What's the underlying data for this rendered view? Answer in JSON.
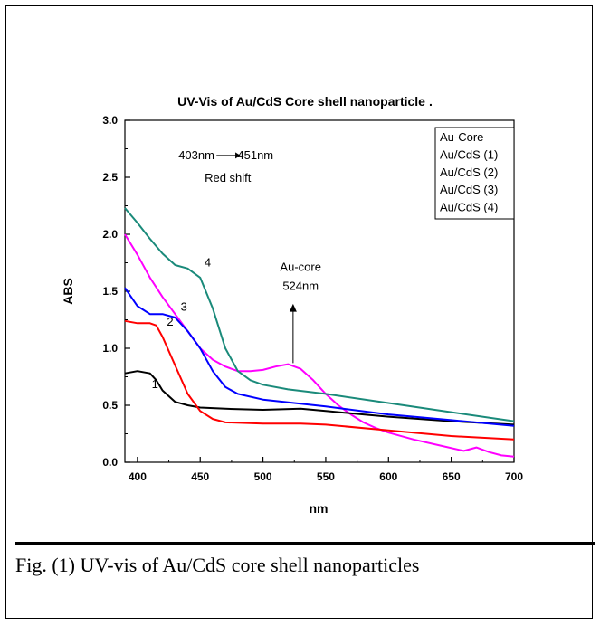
{
  "caption": "Fig.    (1)    UV-vis    of    Au/CdS    core    shell nanoparticles",
  "chart_data": {
    "type": "line",
    "title": "UV-Vis of Au/CdS Core shell nanoparticle",
    "title_suffix": ".",
    "xlabel": "nm",
    "ylabel": "ABS",
    "xlim": [
      390,
      700
    ],
    "ylim": [
      0,
      3.0
    ],
    "xticks": [
      "400",
      "450",
      "500",
      "550",
      "600",
      "650",
      "700"
    ],
    "yticks": [
      "0.0",
      "0.5",
      "1.0",
      "1.5",
      "2.0",
      "2.5",
      "3.0"
    ],
    "grid": false,
    "legend_position": "top-right",
    "series": [
      {
        "name": "Au-Core",
        "color": "#ff00ff",
        "x": [
          390,
          400,
          410,
          420,
          430,
          440,
          450,
          460,
          470,
          480,
          490,
          500,
          510,
          520,
          530,
          540,
          550,
          560,
          570,
          580,
          590,
          600,
          620,
          640,
          660,
          670,
          680,
          690,
          700
        ],
        "y": [
          2.0,
          1.82,
          1.62,
          1.45,
          1.3,
          1.15,
          1.0,
          0.9,
          0.84,
          0.8,
          0.8,
          0.81,
          0.84,
          0.86,
          0.82,
          0.72,
          0.6,
          0.5,
          0.42,
          0.35,
          0.3,
          0.26,
          0.2,
          0.15,
          0.1,
          0.13,
          0.09,
          0.06,
          0.05
        ]
      },
      {
        "name": "Au/CdS (1)",
        "color": "#000000",
        "x": [
          390,
          400,
          410,
          415,
          420,
          430,
          440,
          450,
          470,
          500,
          530,
          550,
          580,
          600,
          650,
          700
        ],
        "y": [
          0.78,
          0.8,
          0.78,
          0.72,
          0.63,
          0.53,
          0.5,
          0.48,
          0.47,
          0.46,
          0.47,
          0.45,
          0.42,
          0.4,
          0.36,
          0.33
        ]
      },
      {
        "name": "Au/CdS (2)",
        "color": "#ff0000",
        "x": [
          390,
          400,
          410,
          415,
          420,
          430,
          440,
          450,
          460,
          470,
          500,
          530,
          550,
          600,
          650,
          700
        ],
        "y": [
          1.24,
          1.22,
          1.22,
          1.2,
          1.1,
          0.85,
          0.6,
          0.45,
          0.38,
          0.35,
          0.34,
          0.34,
          0.33,
          0.28,
          0.23,
          0.2
        ]
      },
      {
        "name": "Au/CdS (3)",
        "color": "#0000ff",
        "x": [
          390,
          400,
          410,
          420,
          430,
          440,
          450,
          460,
          470,
          480,
          500,
          550,
          600,
          650,
          700
        ],
        "y": [
          1.53,
          1.37,
          1.3,
          1.3,
          1.27,
          1.15,
          1.0,
          0.8,
          0.66,
          0.6,
          0.55,
          0.49,
          0.42,
          0.37,
          0.32
        ]
      },
      {
        "name": "Au/CdS (4)",
        "color": "#1a8a7a",
        "x": [
          390,
          400,
          410,
          420,
          430,
          440,
          450,
          460,
          470,
          480,
          490,
          500,
          520,
          550,
          600,
          650,
          700
        ],
        "y": [
          2.23,
          2.1,
          1.96,
          1.83,
          1.73,
          1.7,
          1.62,
          1.35,
          1.0,
          0.8,
          0.72,
          0.68,
          0.64,
          0.6,
          0.52,
          0.44,
          0.36
        ]
      }
    ],
    "annotations": [
      {
        "text": "1",
        "x": 414,
        "y": 0.65
      },
      {
        "text": "2",
        "x": 426,
        "y": 1.2
      },
      {
        "text": "3",
        "x": 437,
        "y": 1.33
      },
      {
        "text": "4",
        "x": 456,
        "y": 1.72
      },
      {
        "text": "Au-core",
        "x": 530,
        "y": 1.68
      },
      {
        "text": "524nm",
        "x": 530,
        "y": 1.51
      },
      {
        "text": "403nm",
        "x": 447,
        "y": 2.66
      },
      {
        "text": "451nm",
        "x": 494,
        "y": 2.66
      },
      {
        "text": "Red shift",
        "x": 472,
        "y": 2.46
      }
    ]
  }
}
